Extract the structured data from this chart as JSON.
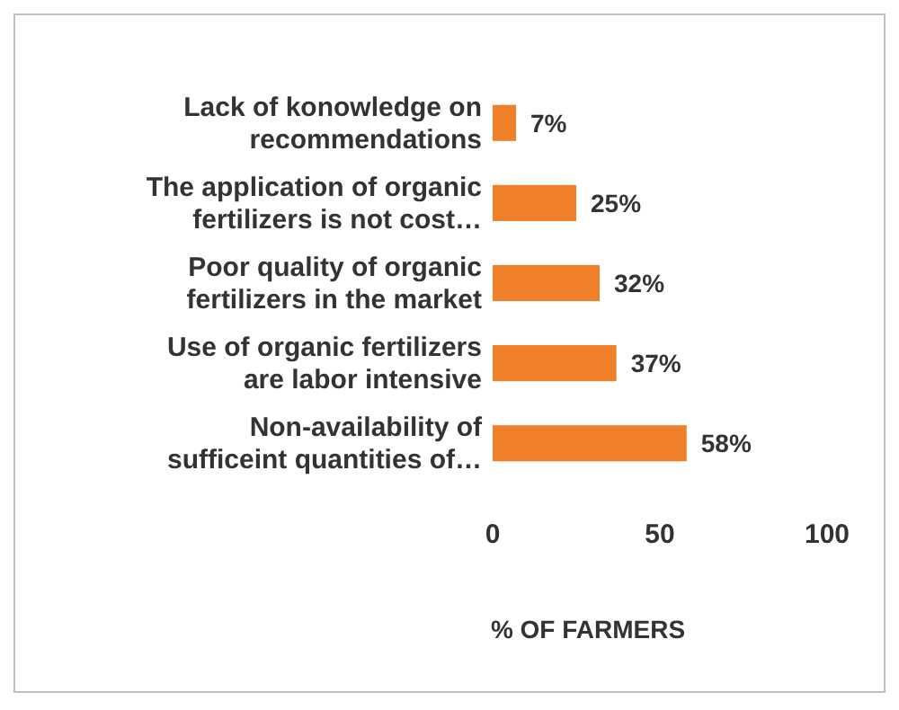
{
  "chart_data": {
    "type": "bar",
    "orientation": "horizontal",
    "xlabel": "% OF FARMERS",
    "categories": [
      "Lack of konowledge on recommendations",
      "The application of organic fertilizers is not cost…",
      "Poor quality of organic fertilizers in the market",
      "Use of organic fertilizers are labor intensive",
      "Non-availability of sufficeint quantities of…"
    ],
    "values": [
      7,
      25,
      32,
      37,
      58
    ],
    "value_labels": [
      "7%",
      "25%",
      "32%",
      "37%",
      "58%"
    ],
    "color": "#f07f2a",
    "xlim": [
      0,
      100
    ],
    "xticks": [
      0,
      50,
      100
    ]
  }
}
